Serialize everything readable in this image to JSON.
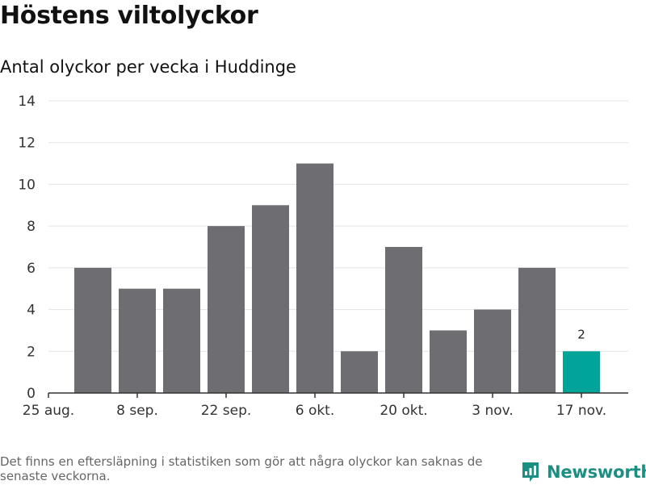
{
  "title": "Höstens viltolyckor",
  "subtitle": "Antal olyckor per vecka i Huddinge",
  "footer_note": "Det finns en eftersläpning i statistiken som gör att några olyckor kan saknas de senaste veckorna.",
  "brand": "Newsworthy",
  "colors": {
    "bar": "#6d6d72",
    "highlight": "#00a498",
    "grid": "#e3e3e3",
    "axis": "#333333",
    "brand": "#1a8f82"
  },
  "chart_data": {
    "type": "bar",
    "categories": [
      "25 aug.",
      "1 sep.",
      "8 sep.",
      "15 sep.",
      "22 sep.",
      "29 sep.",
      "6 okt.",
      "13 okt.",
      "20 okt.",
      "27 okt.",
      "3 nov.",
      "10 nov.",
      "17 nov."
    ],
    "values": [
      null,
      6,
      5,
      5,
      8,
      9,
      11,
      2,
      7,
      3,
      4,
      6,
      2
    ],
    "highlight_index": 12,
    "data_labels": [
      {
        "index": 12,
        "text": "2"
      }
    ],
    "x_tick_labels": [
      "25 aug.",
      "8 sep.",
      "22 sep.",
      "6 okt.",
      "20 okt.",
      "3 nov.",
      "17 nov."
    ],
    "y_ticks": [
      0,
      2,
      4,
      6,
      8,
      10,
      12,
      14
    ],
    "ylim": [
      0,
      14
    ],
    "grid": true,
    "xlabel": "",
    "ylabel": ""
  }
}
